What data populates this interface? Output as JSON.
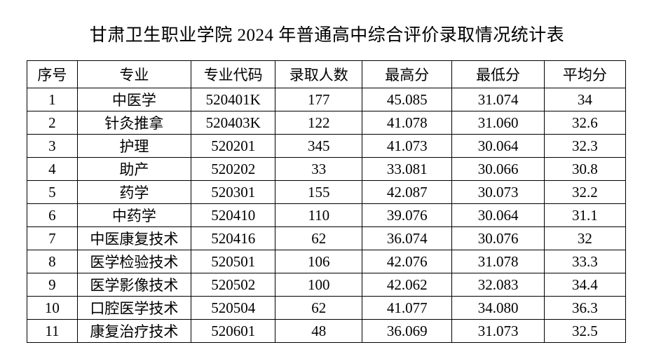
{
  "title": "甘肃卫生职业学院 2024 年普通高中综合评价录取情况统计表",
  "table": {
    "headers": [
      "序号",
      "专业",
      "专业代码",
      "录取人数",
      "最高分",
      "最低分",
      "平均分"
    ],
    "rows": [
      [
        "1",
        "中医学",
        "520401K",
        "177",
        "45.085",
        "31.074",
        "34"
      ],
      [
        "2",
        "针灸推拿",
        "520403K",
        "122",
        "41.078",
        "31.060",
        "32.6"
      ],
      [
        "3",
        "护理",
        "520201",
        "345",
        "41.073",
        "30.064",
        "32.3"
      ],
      [
        "4",
        "助产",
        "520202",
        "33",
        "33.081",
        "30.066",
        "30.8"
      ],
      [
        "5",
        "药学",
        "520301",
        "155",
        "42.087",
        "30.073",
        "32.2"
      ],
      [
        "6",
        "中药学",
        "520410",
        "110",
        "39.076",
        "30.064",
        "31.1"
      ],
      [
        "7",
        "中医康复技术",
        "520416",
        "62",
        "36.074",
        "30.076",
        "32"
      ],
      [
        "8",
        "医学检验技术",
        "520501",
        "106",
        "42.076",
        "31.078",
        "33.3"
      ],
      [
        "9",
        "医学影像技术",
        "520502",
        "100",
        "42.062",
        "32.083",
        "34.4"
      ],
      [
        "10",
        "口腔医学技术",
        "520504",
        "62",
        "41.077",
        "34.080",
        "36.3"
      ],
      [
        "11",
        "康复治疗技术",
        "520601",
        "48",
        "36.069",
        "31.073",
        "32.5"
      ]
    ]
  },
  "colors": {
    "background": "#ffffff",
    "text": "#000000",
    "border": "#000000"
  }
}
